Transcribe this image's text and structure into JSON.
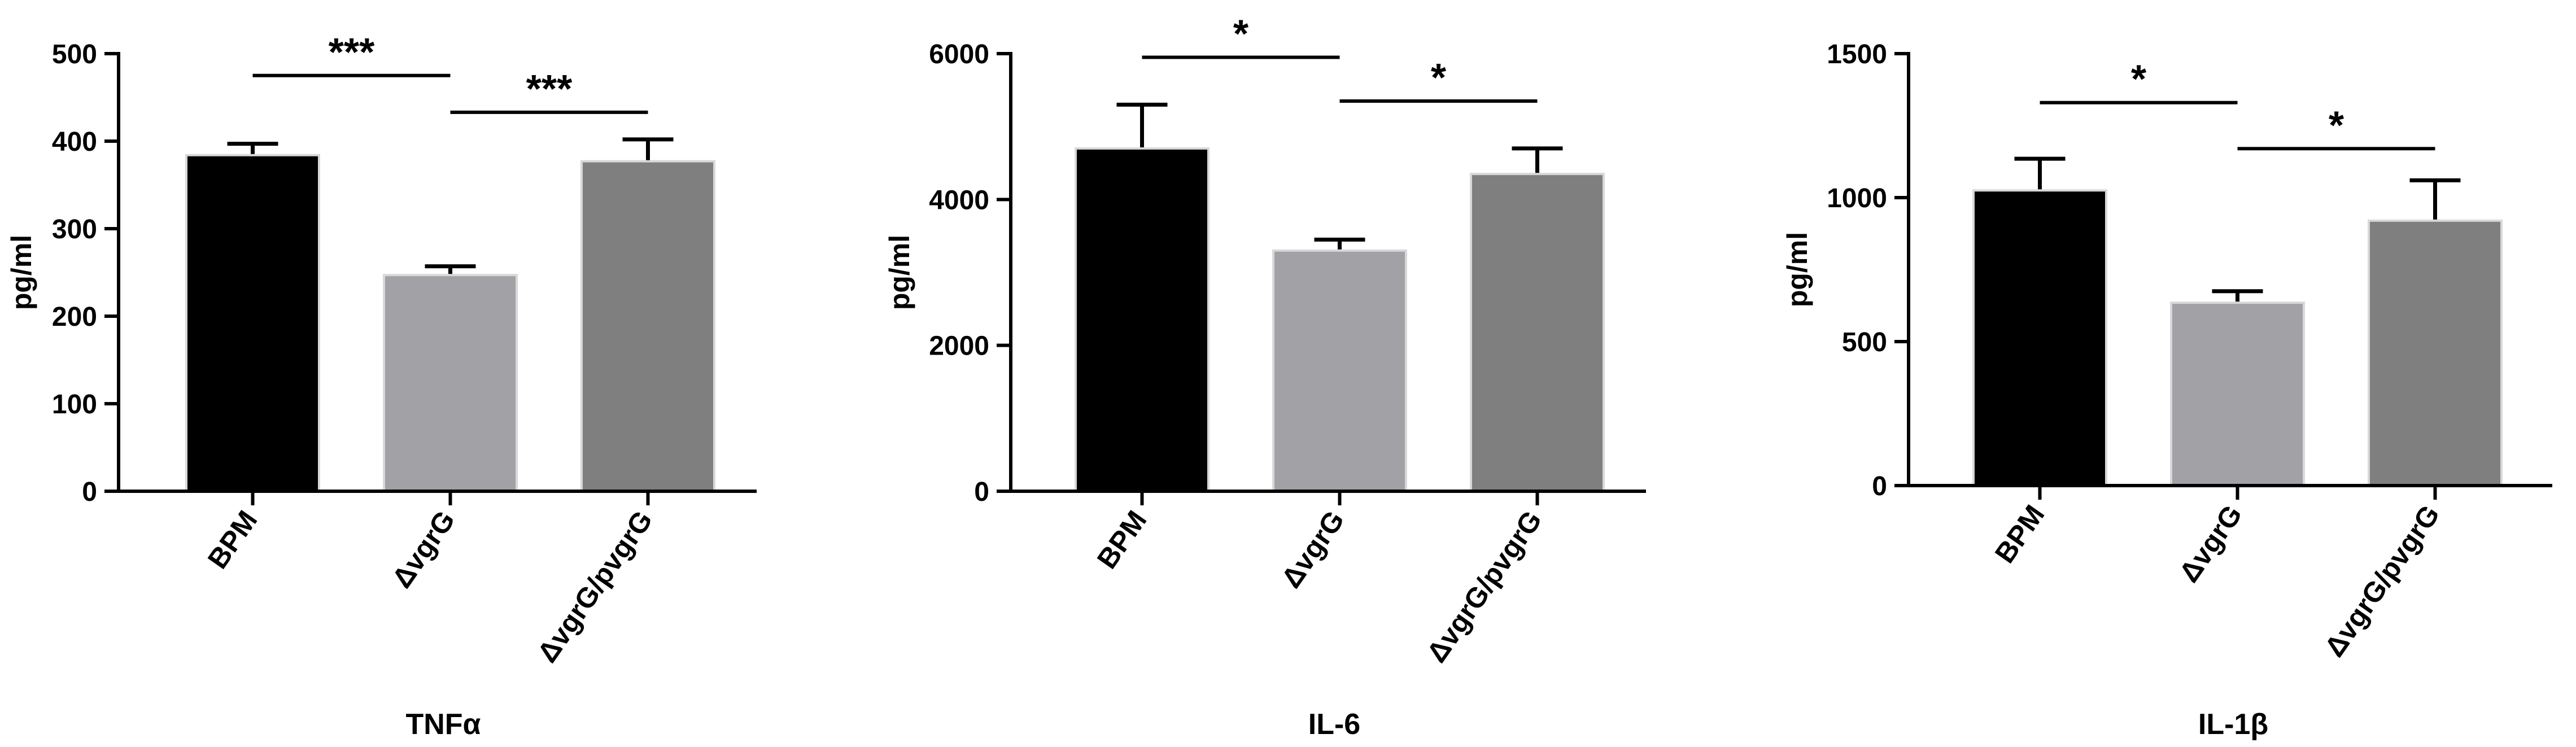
{
  "colors": {
    "BPM": "#000000",
    "ΔvgrG": "#a1a1a6",
    "ΔvgrG/pvgrG": "#7f7f7f",
    "axis": "#000000"
  },
  "chart_data": [
    {
      "type": "bar",
      "xlabel": "TNFα",
      "ylabel": "pg/ml",
      "categories": [
        "BPM",
        "ΔvgrG",
        "ΔvgrG/pvgrG"
      ],
      "values": [
        384,
        247,
        377
      ],
      "errors": [
        13,
        10,
        25
      ],
      "ylim": [
        0,
        500
      ],
      "yticks": [
        0,
        100,
        200,
        300,
        400,
        500
      ],
      "yticklabels": [
        "0",
        "100",
        "200",
        "300",
        "400",
        "500"
      ],
      "significance": [
        {
          "from": 0,
          "to": 1,
          "label": "***",
          "y": 475
        },
        {
          "from": 1,
          "to": 2,
          "label": "***",
          "y": 433
        }
      ]
    },
    {
      "type": "bar",
      "xlabel": "IL-6",
      "ylabel": "pg/ml",
      "categories": [
        "BPM",
        "ΔvgrG",
        "ΔvgrG/pvgrG"
      ],
      "values": [
        4700,
        3300,
        4350
      ],
      "errors": [
        600,
        150,
        350
      ],
      "ylim": [
        0,
        6000
      ],
      "yticks": [
        0,
        2000,
        4000,
        6000
      ],
      "yticklabels": [
        "0",
        "2000",
        "4000",
        "6000"
      ],
      "significance": [
        {
          "from": 0,
          "to": 1,
          "label": "*",
          "y": 5950
        },
        {
          "from": 1,
          "to": 2,
          "label": "*",
          "y": 5350
        }
      ]
    },
    {
      "type": "bar",
      "xlabel": "IL-1β",
      "ylabel": "pg/ml",
      "categories": [
        "BPM",
        "ΔvgrG",
        "ΔvgrG/pvgrG"
      ],
      "values": [
        1025,
        635,
        920
      ],
      "errors": [
        110,
        40,
        140
      ],
      "ylim": [
        0,
        1500
      ],
      "yticks": [
        0,
        500,
        1000,
        1500
      ],
      "yticklabels": [
        "0",
        "500",
        "1000",
        "1500"
      ],
      "significance": [
        {
          "from": 0,
          "to": 1,
          "label": "*",
          "y": 1330
        },
        {
          "from": 1,
          "to": 2,
          "label": "*",
          "y": 1170
        }
      ]
    }
  ]
}
